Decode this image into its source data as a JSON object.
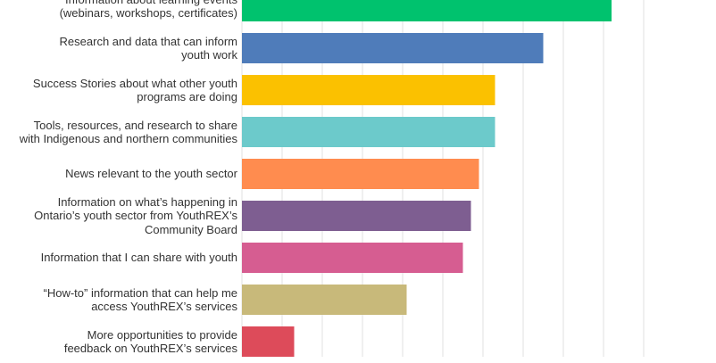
{
  "chart_data": {
    "type": "bar",
    "orientation": "horizontal",
    "categories": [
      [
        "Information about learning events",
        "(webinars, workshops, certificates)"
      ],
      [
        "Research and data that can inform",
        "youth work"
      ],
      [
        "Success Stories about what other youth",
        "programs are doing"
      ],
      [
        "Tools, resources, and research to share",
        "with Indigenous and northern communities"
      ],
      [
        "News relevant to the youth sector"
      ],
      [
        "Information on what’s happening in",
        "Ontario’s youth sector from YouthREX’s",
        "Community Board"
      ],
      [
        "Information that I can share with youth"
      ],
      [
        "“How-to” information that can help me",
        "access YouthREX’s services"
      ],
      [
        "More opportunities to provide",
        "feedback on YouthREX’s services"
      ]
    ],
    "values": [
      92,
      75,
      63,
      63,
      59,
      57,
      55,
      41,
      13
    ],
    "colors": [
      "#00c26e",
      "#4f7cba",
      "#fbc100",
      "#6ccacb",
      "#ff8c4f",
      "#7e5e91",
      "#d65d91",
      "#c8b97a",
      "#dd4b5a"
    ],
    "xlim": [
      0,
      100
    ],
    "grid": true
  }
}
